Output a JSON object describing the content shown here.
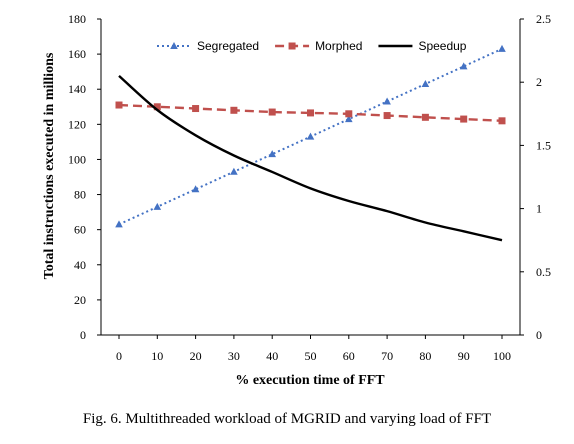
{
  "chart_data": {
    "type": "line",
    "x": [
      0,
      10,
      20,
      30,
      40,
      50,
      60,
      70,
      80,
      90,
      100
    ],
    "xlabel": "% execution time of FFT",
    "ylabel": "Total instructions executed in millions",
    "ylim": [
      0,
      180
    ],
    "y2lim": [
      0,
      2.5
    ],
    "yticks": [
      0,
      20,
      40,
      60,
      80,
      100,
      120,
      140,
      160,
      180
    ],
    "y2ticks": [
      "0",
      "0.5",
      "1",
      "1.5",
      "2",
      "2.5"
    ],
    "legend_position": "top",
    "grid": false,
    "series": [
      {
        "name": "Segregated",
        "axis": "left",
        "color": "#4472C4",
        "style": "dotted",
        "marker": "triangle",
        "values": [
          63,
          73,
          83,
          93,
          103,
          113,
          123,
          133,
          143,
          153,
          163
        ]
      },
      {
        "name": "Morphed",
        "axis": "left",
        "color": "#C0504D",
        "style": "dashed",
        "marker": "square",
        "values": [
          131,
          130,
          129,
          128,
          127,
          126.5,
          126,
          125,
          124,
          123,
          122
        ]
      },
      {
        "name": "Speedup",
        "axis": "right",
        "color": "#000000",
        "style": "solid",
        "marker": "none",
        "values": [
          2.05,
          1.78,
          1.58,
          1.42,
          1.29,
          1.16,
          1.06,
          0.98,
          0.89,
          0.82,
          0.75
        ]
      }
    ]
  },
  "caption": "Fig. 6.    Multithreaded workload of MGRID and varying load of FFT"
}
